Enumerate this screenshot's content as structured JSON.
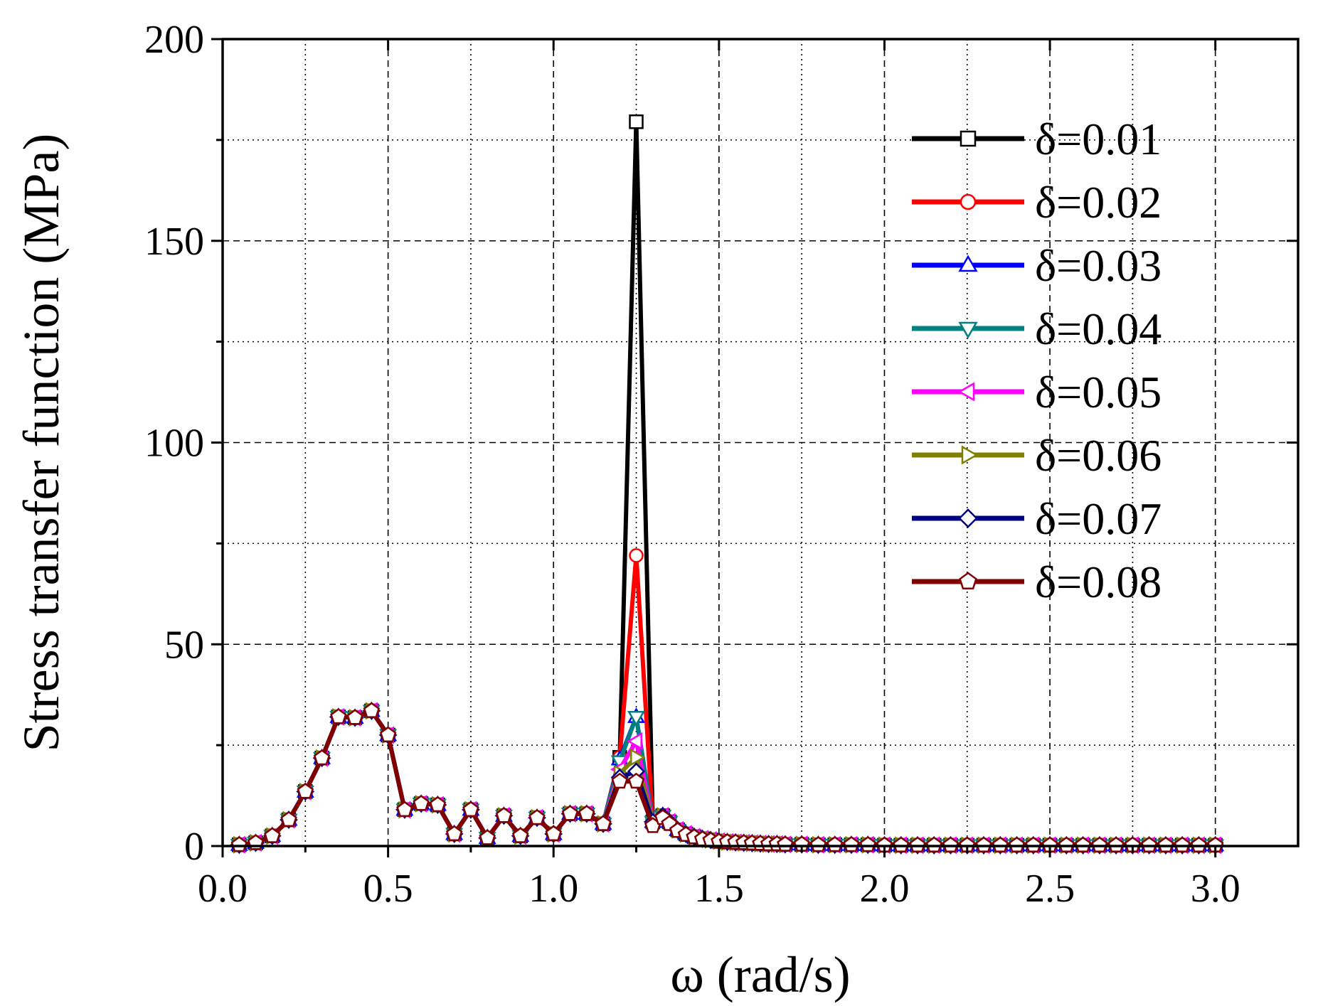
{
  "chart_data": {
    "type": "line",
    "title": "",
    "xlabel": "ω (rad/s)",
    "ylabel": "Stress transfer function (MPa)",
    "xlim": [
      0.0,
      3.25
    ],
    "ylim": [
      0,
      200
    ],
    "xticks": [
      0.0,
      0.5,
      1.0,
      1.5,
      2.0,
      2.5,
      3.0
    ],
    "xtick_labels": [
      "0.0",
      "0.5",
      "1.0",
      "1.5",
      "2.0",
      "2.5",
      "3.0"
    ],
    "yticks": [
      0,
      50,
      100,
      150,
      200
    ],
    "ytick_labels": [
      "0",
      "50",
      "100",
      "150",
      "200"
    ],
    "grid": true,
    "legend_position": "top-right",
    "x": [
      0.05,
      0.1,
      0.15,
      0.2,
      0.25,
      0.3,
      0.35,
      0.4,
      0.45,
      0.5,
      0.55,
      0.6,
      0.65,
      0.7,
      0.75,
      0.8,
      0.85,
      0.9,
      0.95,
      1.0,
      1.05,
      1.1,
      1.15,
      1.2,
      1.25,
      1.3,
      1.33,
      1.35,
      1.375,
      1.4,
      1.425,
      1.45,
      1.475,
      1.5,
      1.525,
      1.55,
      1.575,
      1.6,
      1.625,
      1.65,
      1.675,
      1.7,
      1.75,
      1.8,
      1.85,
      1.9,
      1.95,
      2.0,
      2.05,
      2.1,
      2.15,
      2.2,
      2.25,
      2.3,
      2.35,
      2.4,
      2.45,
      2.5,
      2.55,
      2.6,
      2.65,
      2.7,
      2.75,
      2.8,
      2.85,
      2.9,
      2.95,
      3.0
    ],
    "series": [
      {
        "name": "δ=0.01",
        "color": "#000000",
        "marker": "square",
        "values": [
          0.3,
          0.8,
          2.5,
          6.5,
          13.5,
          21.8,
          32.0,
          31.8,
          33.5,
          27.5,
          9.0,
          10.5,
          10.2,
          3.0,
          9.0,
          2.0,
          7.5,
          2.5,
          7.0,
          3.0,
          8.0,
          8.0,
          5.5,
          22.0,
          179.5,
          6.0,
          7.5,
          6.0,
          4.0,
          3.0,
          2.3,
          1.8,
          1.5,
          1.2,
          1.0,
          0.9,
          0.8,
          0.7,
          0.6,
          0.5,
          0.5,
          0.4,
          0.4,
          0.3,
          0.3,
          0.3,
          0.3,
          0.2,
          0.2,
          0.2,
          0.2,
          0.2,
          0.2,
          0.2,
          0.2,
          0.2,
          0.2,
          0.2,
          0.2,
          0.2,
          0.2,
          0.2,
          0.2,
          0.2,
          0.2,
          0.2,
          0.2,
          0.2
        ]
      },
      {
        "name": "δ=0.02",
        "color": "#ff0000",
        "marker": "circle",
        "values": [
          0.3,
          0.8,
          2.5,
          6.5,
          13.5,
          21.8,
          32.0,
          31.8,
          33.5,
          27.5,
          9.0,
          10.5,
          10.2,
          3.0,
          9.0,
          2.0,
          7.5,
          2.5,
          7.0,
          3.0,
          8.0,
          8.0,
          5.5,
          22.0,
          72.0,
          6.0,
          7.5,
          6.0,
          4.0,
          3.0,
          2.3,
          1.8,
          1.5,
          1.2,
          1.0,
          0.9,
          0.8,
          0.7,
          0.6,
          0.5,
          0.5,
          0.4,
          0.4,
          0.3,
          0.3,
          0.3,
          0.3,
          0.2,
          0.2,
          0.2,
          0.2,
          0.2,
          0.2,
          0.2,
          0.2,
          0.2,
          0.2,
          0.2,
          0.2,
          0.2,
          0.2,
          0.2,
          0.2,
          0.2,
          0.2,
          0.2,
          0.2,
          0.2
        ]
      },
      {
        "name": "δ=0.03",
        "color": "#0000ff",
        "marker": "triangle-up",
        "values": [
          0.3,
          0.8,
          2.5,
          6.5,
          13.5,
          21.8,
          32.0,
          31.8,
          33.5,
          27.5,
          9.0,
          10.5,
          10.2,
          3.0,
          9.0,
          2.0,
          7.5,
          2.5,
          7.0,
          3.0,
          8.0,
          8.0,
          5.5,
          21.5,
          32.0,
          6.0,
          7.5,
          6.0,
          4.0,
          3.0,
          2.3,
          1.8,
          1.5,
          1.2,
          1.0,
          0.9,
          0.8,
          0.7,
          0.6,
          0.5,
          0.5,
          0.4,
          0.4,
          0.3,
          0.3,
          0.3,
          0.3,
          0.2,
          0.2,
          0.2,
          0.2,
          0.2,
          0.2,
          0.2,
          0.2,
          0.2,
          0.2,
          0.2,
          0.2,
          0.2,
          0.2,
          0.2,
          0.2,
          0.2,
          0.2,
          0.2,
          0.2,
          0.2
        ]
      },
      {
        "name": "δ=0.04",
        "color": "#008080",
        "marker": "triangle-down",
        "values": [
          0.3,
          0.8,
          2.5,
          6.5,
          13.5,
          21.8,
          32.0,
          31.8,
          33.5,
          27.5,
          9.0,
          10.5,
          10.2,
          3.0,
          9.0,
          2.0,
          7.5,
          2.5,
          7.0,
          3.0,
          8.0,
          8.0,
          5.5,
          21.0,
          32.0,
          6.0,
          7.5,
          6.0,
          4.0,
          3.0,
          2.3,
          1.8,
          1.5,
          1.2,
          1.0,
          0.9,
          0.8,
          0.7,
          0.6,
          0.5,
          0.5,
          0.4,
          0.4,
          0.3,
          0.3,
          0.3,
          0.3,
          0.2,
          0.2,
          0.2,
          0.2,
          0.2,
          0.2,
          0.2,
          0.2,
          0.2,
          0.2,
          0.2,
          0.2,
          0.2,
          0.2,
          0.2,
          0.2,
          0.2,
          0.2,
          0.2,
          0.2,
          0.2
        ]
      },
      {
        "name": "δ=0.05",
        "color": "#ff00ff",
        "marker": "triangle-left",
        "values": [
          0.3,
          0.8,
          2.5,
          6.5,
          13.5,
          21.8,
          32.0,
          31.8,
          33.5,
          27.5,
          9.0,
          10.5,
          10.2,
          3.0,
          9.0,
          2.0,
          7.5,
          2.5,
          7.0,
          3.0,
          8.0,
          8.0,
          5.5,
          19.0,
          26.0,
          6.0,
          7.5,
          6.0,
          4.0,
          3.0,
          2.3,
          1.8,
          1.5,
          1.2,
          1.0,
          0.9,
          0.8,
          0.7,
          0.6,
          0.5,
          0.5,
          0.4,
          0.4,
          0.3,
          0.3,
          0.3,
          0.3,
          0.2,
          0.2,
          0.2,
          0.2,
          0.2,
          0.2,
          0.2,
          0.2,
          0.2,
          0.2,
          0.2,
          0.2,
          0.2,
          0.2,
          0.2,
          0.2,
          0.2,
          0.2,
          0.2,
          0.2,
          0.2
        ]
      },
      {
        "name": "δ=0.06",
        "color": "#808000",
        "marker": "triangle-right",
        "values": [
          0.3,
          0.8,
          2.5,
          6.5,
          13.5,
          21.8,
          32.0,
          31.8,
          33.5,
          27.5,
          9.0,
          10.5,
          10.2,
          3.0,
          9.0,
          2.0,
          7.5,
          2.5,
          7.0,
          3.0,
          8.0,
          8.0,
          5.5,
          18.0,
          22.0,
          6.0,
          7.5,
          6.0,
          4.0,
          3.0,
          2.3,
          1.8,
          1.5,
          1.2,
          1.0,
          0.9,
          0.8,
          0.7,
          0.6,
          0.5,
          0.5,
          0.4,
          0.4,
          0.3,
          0.3,
          0.3,
          0.3,
          0.2,
          0.2,
          0.2,
          0.2,
          0.2,
          0.2,
          0.2,
          0.2,
          0.2,
          0.2,
          0.2,
          0.2,
          0.2,
          0.2,
          0.2,
          0.2,
          0.2,
          0.2,
          0.2,
          0.2,
          0.2
        ]
      },
      {
        "name": "δ=0.07",
        "color": "#000080",
        "marker": "diamond",
        "values": [
          0.3,
          0.8,
          2.5,
          6.5,
          13.5,
          21.8,
          32.0,
          31.8,
          33.5,
          27.5,
          9.0,
          10.5,
          10.2,
          3.0,
          9.0,
          2.0,
          7.5,
          2.5,
          7.0,
          3.0,
          8.0,
          8.0,
          5.5,
          17.0,
          18.5,
          6.0,
          7.5,
          6.0,
          4.0,
          3.0,
          2.3,
          1.8,
          1.5,
          1.2,
          1.0,
          0.9,
          0.8,
          0.7,
          0.6,
          0.5,
          0.5,
          0.4,
          0.4,
          0.3,
          0.3,
          0.3,
          0.3,
          0.2,
          0.2,
          0.2,
          0.2,
          0.2,
          0.2,
          0.2,
          0.2,
          0.2,
          0.2,
          0.2,
          0.2,
          0.2,
          0.2,
          0.2,
          0.2,
          0.2,
          0.2,
          0.2,
          0.2,
          0.2
        ]
      },
      {
        "name": "δ=0.08",
        "color": "#800000",
        "marker": "pentagon",
        "values": [
          0.3,
          0.8,
          2.5,
          6.5,
          13.5,
          21.8,
          32.0,
          31.8,
          33.5,
          27.5,
          9.0,
          10.5,
          10.2,
          3.0,
          9.0,
          2.0,
          7.5,
          2.5,
          7.0,
          3.0,
          8.0,
          8.0,
          5.5,
          16.0,
          16.0,
          5.0,
          7.0,
          5.5,
          3.8,
          2.8,
          2.2,
          1.7,
          1.4,
          1.1,
          1.0,
          0.9,
          0.8,
          0.7,
          0.6,
          0.5,
          0.5,
          0.4,
          0.4,
          0.3,
          0.3,
          0.3,
          0.3,
          0.2,
          0.2,
          0.2,
          0.2,
          0.2,
          0.2,
          0.2,
          0.2,
          0.2,
          0.2,
          0.2,
          0.2,
          0.2,
          0.2,
          0.2,
          0.2,
          0.2,
          0.2,
          0.2,
          0.2,
          0.2
        ]
      }
    ]
  }
}
